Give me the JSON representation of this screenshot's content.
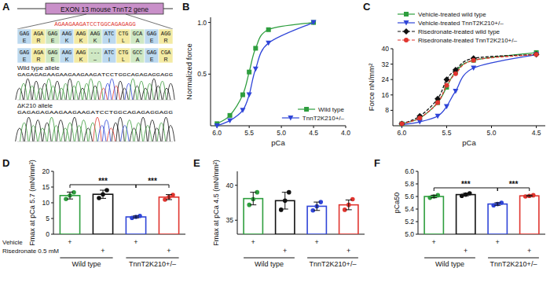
{
  "panel_labels": [
    "A",
    "B",
    "C",
    "D",
    "E",
    "F"
  ],
  "diagram": {
    "gene_label": "EXON 13 mouse TnnT2 gene",
    "highlight_sequence": "AGAAGAAGATCCTGGCAGAGAGG",
    "alleles": [
      {
        "codons": [
          "GAG",
          "AGA",
          "GAG",
          "AAG",
          "AAG",
          "AAG",
          "ATC",
          "CTG",
          "GCA",
          "GAG",
          "AGG"
        ],
        "amino_acids": [
          "E",
          "R",
          "E",
          "K",
          "K",
          "K",
          "I",
          "L",
          "A",
          "E",
          "R"
        ]
      },
      {
        "codons": [
          "GAG",
          "AGA",
          "GAG",
          "AAG",
          "AAG",
          "---",
          "ATC",
          "CTG",
          "GCC",
          "GAG",
          "CGA"
        ],
        "amino_acids": [
          "E",
          "R",
          "E",
          "K",
          "K",
          "–",
          "I",
          "L",
          "A",
          "E",
          "R"
        ]
      }
    ],
    "traces": [
      {
        "label": "Wild type allele",
        "sequence": "GAGAGAGAAGAAGAAGAAGATCCTGGCAGAGAGGAGG"
      },
      {
        "label": "ΔK210 allele",
        "sequence": "GAGAGAGAAGAAGAAGATCCTGGCAGAGAGGAGG"
      }
    ]
  },
  "chart_data": [
    {
      "type": "line",
      "x_label": "pCa",
      "y_label": "Normalized force",
      "x": [
        6.0,
        5.8,
        5.6,
        5.5,
        5.4,
        5.2,
        4.5
      ],
      "series": [
        {
          "name": "Wild type",
          "color": "#2e9e3e",
          "marker": "square",
          "line_style": "solid",
          "values": [
            0.02,
            0.1,
            0.3,
            0.52,
            0.75,
            0.93,
            1.0
          ]
        },
        {
          "name": "TnnT2K210+/–",
          "color": "#2f45d8",
          "marker": "triangle",
          "line_style": "solid",
          "values": [
            0.0,
            0.05,
            0.15,
            0.3,
            0.55,
            0.8,
            1.0
          ]
        }
      ],
      "xlim": [
        6.1,
        4.0
      ],
      "ylim": [
        0,
        1.05
      ],
      "xticks": [
        {
          "value": 6,
          "label": "6.0"
        },
        5.5,
        {
          "value": 5,
          "label": "5.0"
        },
        4.5,
        {
          "value": 4,
          "label": "4.0"
        }
      ],
      "yticks": [
        0.5,
        {
          "value": 1,
          "label": "1.0"
        }
      ],
      "legend": "lower right"
    },
    {
      "type": "line",
      "x_label": "pCa",
      "y_label": "Force nN/mm²",
      "x": [
        6.0,
        5.8,
        5.6,
        5.5,
        5.4,
        5.2,
        4.5
      ],
      "series": [
        {
          "name": "Vehicle-treated wild type",
          "color": "#2e9e3e",
          "marker": "square",
          "line_style": "solid",
          "values": [
            1,
            4,
            12,
            20,
            28,
            34,
            38
          ]
        },
        {
          "name": "Vehicle-treated TnnT2K210+/–",
          "color": "#2f45d8",
          "marker": "triangle",
          "line_style": "solid",
          "values": [
            0.5,
            2,
            5,
            10,
            18,
            30,
            37
          ]
        },
        {
          "name": "Risedronate-treated wild type",
          "color": "#111111",
          "marker": "diamond",
          "line_style": "dashed",
          "values": [
            1,
            5,
            14,
            24,
            29,
            35,
            37
          ]
        },
        {
          "name": "Risedronate-treated TnnT2K210+/–",
          "color": "#e0352f",
          "marker": "circle",
          "line_style": "dashed",
          "values": [
            1,
            4,
            12,
            21,
            27,
            34,
            37
          ]
        }
      ],
      "xlim": [
        6.1,
        4.4
      ],
      "ylim": [
        0,
        40
      ],
      "xticks": [
        {
          "value": 6,
          "label": "6.0"
        },
        5.5,
        {
          "value": 5,
          "label": "5.0"
        },
        4.5
      ],
      "yticks": [
        8,
        16,
        24,
        32,
        40
      ],
      "legend": "upper left"
    },
    {
      "type": "bar",
      "y_label": "Fmax at pCa 5.7 (mN/mm²)",
      "categories": [
        null,
        null,
        null,
        null
      ],
      "values": [
        12.3,
        12.7,
        5.5,
        11.8
      ],
      "errors": [
        1.1,
        1.3,
        0.3,
        0.8
      ],
      "points": [
        [
          11.2,
          12.3,
          13.3
        ],
        [
          11.5,
          12.7,
          14.0
        ],
        [
          5.2,
          5.5,
          5.8
        ],
        [
          11.0,
          11.8,
          12.5
        ]
      ],
      "colors": [
        "#2e9e3e",
        "#111111",
        "#2f45d8",
        "#e0352f"
      ],
      "ylim": [
        0,
        20
      ],
      "yticks": [
        0,
        5,
        10,
        15,
        20
      ],
      "significance": [
        {
          "from": 0,
          "to": 2,
          "label": "***"
        },
        {
          "from": 2,
          "to": 3,
          "label": "***"
        }
      ],
      "treatment_rows": [
        {
          "label": "Vehicle",
          "marks": [
            "+",
            null,
            "+",
            null
          ]
        },
        {
          "label": "Risedronate 0.5 mM",
          "marks": [
            null,
            "+",
            null,
            "+"
          ]
        }
      ],
      "group_labels": [
        "Wild type",
        "TnnT2K210+/–"
      ]
    },
    {
      "type": "bar",
      "y_label": "Fmax at pCa 4.5 (mN/mm²)",
      "categories": [
        null,
        null,
        null,
        null
      ],
      "values": [
        38.1,
        37.8,
        37.0,
        37.2
      ],
      "errors": [
        0.9,
        1.2,
        0.6,
        0.7
      ],
      "points": [
        [
          37.2,
          38.0,
          39.0
        ],
        [
          36.5,
          37.8,
          39.0
        ],
        [
          36.4,
          37.0,
          37.6
        ],
        [
          36.5,
          37.2,
          38.0
        ]
      ],
      "colors": [
        "#2e9e3e",
        "#111111",
        "#2f45d8",
        "#e0352f"
      ],
      "ylim": [
        33,
        42
      ],
      "yticks": [
        35,
        40
      ],
      "treatment_rows": [
        {
          "marks": [
            "+",
            null,
            "+",
            null
          ]
        },
        {
          "marks": [
            null,
            "+",
            null,
            "+"
          ]
        }
      ],
      "group_labels": [
        "Wild type",
        "TnnT2K210+/–"
      ]
    },
    {
      "type": "bar",
      "y_label": "pCa50",
      "categories": [
        null,
        null,
        null,
        null
      ],
      "values": [
        5.6,
        5.63,
        5.48,
        5.61
      ],
      "errors": [
        0.02,
        0.02,
        0.02,
        0.01
      ],
      "points": [
        [
          5.58,
          5.6,
          5.62
        ],
        [
          5.61,
          5.63,
          5.65
        ],
        [
          5.46,
          5.48,
          5.5
        ],
        [
          5.6,
          5.61,
          5.62
        ]
      ],
      "colors": [
        "#2e9e3e",
        "#111111",
        "#2f45d8",
        "#e0352f"
      ],
      "ylim": [
        5.0,
        6.0
      ],
      "yticks": [
        {
          "value": 5,
          "label": "5.0"
        },
        5.2,
        5.4,
        5.6,
        5.8,
        {
          "value": 6,
          "label": "6.0"
        }
      ],
      "significance": [
        {
          "from": 0,
          "to": 2,
          "label": "***"
        },
        {
          "from": 2,
          "to": 3,
          "label": "***"
        }
      ],
      "treatment_rows": [
        {
          "marks": [
            "+",
            null,
            "+",
            null
          ]
        },
        {
          "marks": [
            null,
            "+",
            null,
            "+"
          ]
        }
      ],
      "group_labels": [
        "Wild type",
        "TnnT2K210+/–"
      ]
    }
  ]
}
